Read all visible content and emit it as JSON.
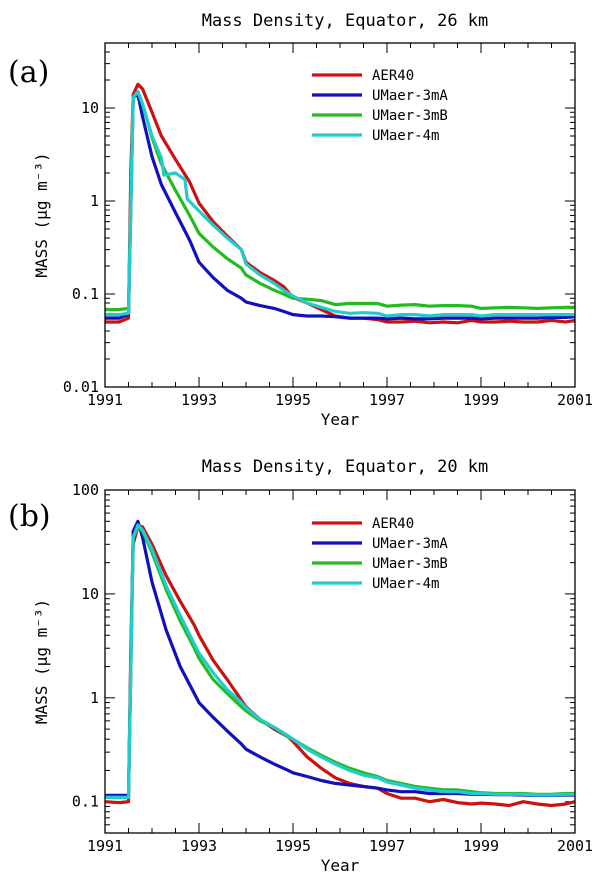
{
  "chart_data": [
    {
      "type": "line",
      "panel_label": "(a)",
      "title": "Mass Density, Equator, 26 km",
      "xlabel": "Year",
      "ylabel": "MASS (μg m⁻³)",
      "yscale": "log",
      "xlim": [
        1991,
        2001
      ],
      "ylim": [
        0.01,
        50
      ],
      "xticks": [
        "1991",
        "1993",
        "1995",
        "1997",
        "1999",
        "2001"
      ],
      "yticks": [
        {
          "v": 0.01,
          "label": "0.01"
        },
        {
          "v": 0.1,
          "label": "0.1"
        },
        {
          "v": 1,
          "label": "1"
        },
        {
          "v": 10,
          "label": "10"
        }
      ],
      "legend_position": "top-right",
      "series": [
        {
          "name": "AER40",
          "color": "#cc1111",
          "x": [
            1991.0,
            1991.3,
            1991.5,
            1991.55,
            1991.6,
            1991.7,
            1991.8,
            1992.0,
            1992.2,
            1992.5,
            1992.8,
            1993.0,
            1993.3,
            1993.6,
            1993.9,
            1994.0,
            1994.3,
            1994.6,
            1994.8,
            1995.0,
            1995.3,
            1995.6,
            1995.9,
            1996.2,
            1996.5,
            1996.8,
            1997.0,
            1997.3,
            1997.6,
            1997.9,
            1998.2,
            1998.5,
            1998.8,
            1999.0,
            1999.3,
            1999.6,
            1999.9,
            2000.2,
            2000.5,
            2000.8,
            2001.0
          ],
          "y": [
            0.05,
            0.05,
            0.055,
            2,
            14,
            18,
            16,
            9,
            5,
            2.8,
            1.6,
            0.95,
            0.6,
            0.42,
            0.3,
            0.22,
            0.17,
            0.14,
            0.12,
            0.092,
            0.08,
            0.068,
            0.058,
            0.055,
            0.055,
            0.053,
            0.05,
            0.05,
            0.051,
            0.049,
            0.05,
            0.049,
            0.052,
            0.05,
            0.05,
            0.051,
            0.05,
            0.05,
            0.052,
            0.05,
            0.052
          ]
        },
        {
          "name": "UMaer-3mA",
          "color": "#1111bb",
          "x": [
            1991.0,
            1991.3,
            1991.5,
            1991.6,
            1991.7,
            1991.8,
            1992.0,
            1992.2,
            1992.5,
            1992.8,
            1993.0,
            1993.3,
            1993.6,
            1993.9,
            1994.0,
            1994.3,
            1994.6,
            1994.8,
            1995.0,
            1995.3,
            1995.6,
            1995.9,
            1996.2,
            1996.5,
            1996.8,
            1997.0,
            1997.3,
            1997.6,
            1997.9,
            1998.2,
            1998.5,
            1998.8,
            1999.0,
            1999.3,
            1999.6,
            1999.9,
            2000.2,
            2000.5,
            2000.8,
            2001.0
          ],
          "y": [
            0.055,
            0.055,
            0.06,
            13,
            14,
            8,
            3,
            1.5,
            0.75,
            0.38,
            0.22,
            0.15,
            0.11,
            0.09,
            0.082,
            0.075,
            0.07,
            0.065,
            0.06,
            0.058,
            0.058,
            0.057,
            0.055,
            0.055,
            0.055,
            0.054,
            0.055,
            0.054,
            0.054,
            0.055,
            0.055,
            0.055,
            0.054,
            0.055,
            0.055,
            0.055,
            0.055,
            0.056,
            0.056,
            0.057
          ]
        },
        {
          "name": "UMaer-3mB",
          "color": "#22bb22",
          "x": [
            1991.0,
            1991.3,
            1991.5,
            1991.6,
            1991.7,
            1991.8,
            1992.0,
            1992.2,
            1992.5,
            1992.8,
            1993.0,
            1993.3,
            1993.6,
            1993.9,
            1994.0,
            1994.3,
            1994.6,
            1994.8,
            1995.0,
            1995.3,
            1995.6,
            1995.9,
            1996.2,
            1996.5,
            1996.8,
            1997.0,
            1997.3,
            1997.6,
            1997.9,
            1998.2,
            1998.5,
            1998.8,
            1999.0,
            1999.3,
            1999.6,
            1999.9,
            2000.2,
            2000.5,
            2000.8,
            2001.0
          ],
          "y": [
            0.068,
            0.068,
            0.07,
            13,
            15,
            11,
            4.8,
            2.5,
            1.3,
            0.7,
            0.45,
            0.32,
            0.24,
            0.19,
            0.16,
            0.13,
            0.11,
            0.1,
            0.09,
            0.088,
            0.085,
            0.077,
            0.079,
            0.079,
            0.079,
            0.074,
            0.076,
            0.077,
            0.074,
            0.075,
            0.075,
            0.074,
            0.07,
            0.071,
            0.072,
            0.071,
            0.07,
            0.071,
            0.072,
            0.072
          ]
        },
        {
          "name": "UMaer-4m",
          "color": "#22cccc",
          "x": [
            1991.0,
            1991.3,
            1991.5,
            1991.6,
            1991.7,
            1991.8,
            1992.0,
            1992.2,
            1992.25,
            1992.5,
            1992.7,
            1992.75,
            1993.0,
            1993.3,
            1993.6,
            1993.9,
            1994.0,
            1994.3,
            1994.6,
            1994.8,
            1995.0,
            1995.3,
            1995.6,
            1995.9,
            1996.2,
            1996.5,
            1996.8,
            1997.0,
            1997.3,
            1997.6,
            1997.9,
            1998.2,
            1998.5,
            1998.8,
            1999.0,
            1999.3,
            1999.6,
            1999.9,
            2000.2,
            2000.5,
            2000.8,
            2001.0
          ],
          "y": [
            0.06,
            0.06,
            0.062,
            13,
            15,
            11,
            5,
            2.9,
            1.9,
            2,
            1.7,
            1.05,
            0.78,
            0.55,
            0.4,
            0.3,
            0.21,
            0.16,
            0.13,
            0.11,
            0.095,
            0.08,
            0.072,
            0.065,
            0.062,
            0.063,
            0.062,
            0.058,
            0.06,
            0.06,
            0.058,
            0.06,
            0.06,
            0.06,
            0.058,
            0.06,
            0.06,
            0.06,
            0.06,
            0.06,
            0.06,
            0.06
          ]
        }
      ]
    },
    {
      "type": "line",
      "panel_label": "(b)",
      "title": "Mass Density, Equator, 20 km",
      "xlabel": "Year",
      "ylabel": "MASS (μg m⁻³)",
      "yscale": "log",
      "xlim": [
        1991,
        2001
      ],
      "ylim": [
        0.05,
        100
      ],
      "xticks": [
        "1991",
        "1993",
        "1995",
        "1997",
        "1999",
        "2001"
      ],
      "yticks": [
        {
          "v": 0.1,
          "label": "0.1"
        },
        {
          "v": 1,
          "label": "1"
        },
        {
          "v": 10,
          "label": "10"
        },
        {
          "v": 100,
          "label": "100"
        }
      ],
      "legend_position": "top-right",
      "series": [
        {
          "name": "AER40",
          "color": "#cc1111",
          "x": [
            1991.0,
            1991.3,
            1991.5,
            1991.55,
            1991.6,
            1991.7,
            1991.8,
            1992.0,
            1992.3,
            1992.6,
            1992.9,
            1993.0,
            1993.3,
            1993.6,
            1993.9,
            1994.0,
            1994.3,
            1994.6,
            1994.9,
            1995.0,
            1995.3,
            1995.6,
            1995.9,
            1996.2,
            1996.5,
            1996.8,
            1997.0,
            1997.3,
            1997.6,
            1997.9,
            1998.2,
            1998.5,
            1998.8,
            1999.0,
            1999.3,
            1999.6,
            1999.9,
            2000.2,
            2000.5,
            2000.8,
            2001.0
          ],
          "y": [
            0.1,
            0.098,
            0.1,
            3,
            30,
            45,
            44,
            30,
            15,
            8.5,
            5,
            4,
            2.3,
            1.5,
            0.95,
            0.82,
            0.62,
            0.5,
            0.42,
            0.38,
            0.27,
            0.21,
            0.17,
            0.15,
            0.14,
            0.135,
            0.12,
            0.108,
            0.108,
            0.1,
            0.105,
            0.098,
            0.095,
            0.097,
            0.095,
            0.092,
            0.1,
            0.095,
            0.092,
            0.095,
            0.1
          ]
        },
        {
          "name": "UMaer-3mA",
          "color": "#1111bb",
          "x": [
            1991.0,
            1991.3,
            1991.5,
            1991.6,
            1991.7,
            1991.8,
            1992.0,
            1992.3,
            1992.6,
            1992.9,
            1993.0,
            1993.3,
            1993.6,
            1993.9,
            1994.0,
            1994.3,
            1994.6,
            1994.9,
            1995.0,
            1995.3,
            1995.6,
            1995.9,
            1996.2,
            1996.5,
            1996.8,
            1997.0,
            1997.3,
            1997.6,
            1997.9,
            1998.2,
            1998.5,
            1998.8,
            1999.0,
            1999.3,
            1999.6,
            1999.9,
            2000.2,
            2000.5,
            2000.8,
            2001.0
          ],
          "y": [
            0.115,
            0.115,
            0.115,
            40,
            50,
            35,
            13,
            4.5,
            2,
            1.1,
            0.9,
            0.65,
            0.48,
            0.36,
            0.32,
            0.27,
            0.23,
            0.2,
            0.19,
            0.175,
            0.16,
            0.15,
            0.145,
            0.14,
            0.135,
            0.13,
            0.125,
            0.125,
            0.12,
            0.12,
            0.12,
            0.118,
            0.118,
            0.117,
            0.117,
            0.116,
            0.115,
            0.115,
            0.116,
            0.116
          ]
        },
        {
          "name": "UMaer-3mB",
          "color": "#22bb22",
          "x": [
            1991.0,
            1991.3,
            1991.5,
            1991.6,
            1991.7,
            1991.8,
            1992.0,
            1992.3,
            1992.6,
            1992.9,
            1993.0,
            1993.3,
            1993.6,
            1993.9,
            1994.0,
            1994.3,
            1994.6,
            1994.9,
            1995.0,
            1995.3,
            1995.6,
            1995.9,
            1996.2,
            1996.5,
            1996.8,
            1997.0,
            1997.3,
            1997.6,
            1997.9,
            1998.2,
            1998.5,
            1998.8,
            1999.0,
            1999.3,
            1999.6,
            1999.9,
            2000.2,
            2000.5,
            2000.8,
            2001.0
          ],
          "y": [
            0.11,
            0.11,
            0.11,
            35,
            45,
            40,
            25,
            11,
            5.5,
            3,
            2.4,
            1.5,
            1.1,
            0.82,
            0.75,
            0.6,
            0.52,
            0.42,
            0.4,
            0.33,
            0.28,
            0.24,
            0.21,
            0.19,
            0.175,
            0.16,
            0.15,
            0.14,
            0.135,
            0.13,
            0.13,
            0.125,
            0.122,
            0.12,
            0.12,
            0.12,
            0.118,
            0.118,
            0.12,
            0.12
          ]
        },
        {
          "name": "UMaer-4m",
          "color": "#22cccc",
          "x": [
            1991.0,
            1991.3,
            1991.5,
            1991.6,
            1991.7,
            1991.8,
            1992.0,
            1992.3,
            1992.6,
            1992.9,
            1993.0,
            1993.3,
            1993.6,
            1993.9,
            1994.0,
            1994.3,
            1994.6,
            1994.9,
            1995.0,
            1995.3,
            1995.6,
            1995.9,
            1996.2,
            1996.5,
            1996.8,
            1997.0,
            1997.3,
            1997.6,
            1997.9,
            1998.2,
            1998.5,
            1998.8,
            1999.0,
            1999.3,
            1999.6,
            1999.9,
            2000.2,
            2000.5,
            2000.8,
            2001.0
          ],
          "y": [
            0.11,
            0.11,
            0.11,
            35,
            46,
            41,
            27,
            12,
            6.2,
            3.3,
            2.7,
            1.75,
            1.2,
            0.9,
            0.8,
            0.62,
            0.52,
            0.43,
            0.4,
            0.32,
            0.27,
            0.23,
            0.2,
            0.18,
            0.17,
            0.155,
            0.145,
            0.135,
            0.13,
            0.125,
            0.125,
            0.12,
            0.12,
            0.118,
            0.118,
            0.118,
            0.116,
            0.116,
            0.118,
            0.118
          ]
        }
      ]
    }
  ]
}
